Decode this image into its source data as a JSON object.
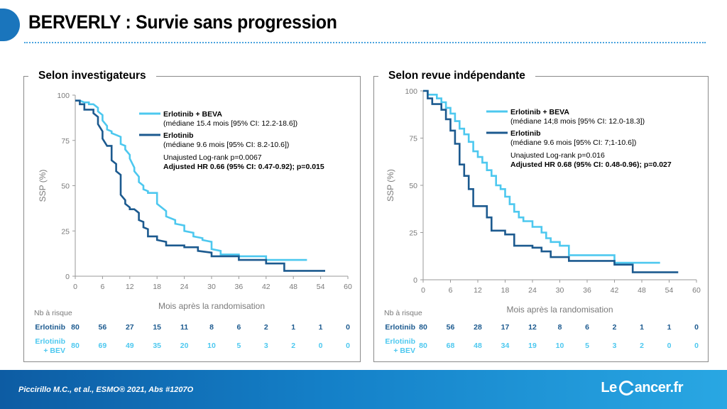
{
  "header": {
    "title": "BERVERLY : Survie sans progression"
  },
  "footer": {
    "citation": "Piccirillo M.C., et al., ESMO® 2021, Abs #1207O",
    "logo_left": "Le",
    "logo_right": "ancer.fr"
  },
  "colors": {
    "erlotinib_bev": "#4dc8ef",
    "erlotinib": "#1c5a8f",
    "accent": "#1a75bc"
  },
  "chart_data": [
    {
      "type": "line",
      "panel_title": "Selon investigateurs",
      "ylabel": "SSP (%)",
      "xlabel": "Mois après la randomisation",
      "xlim": [
        0,
        60
      ],
      "ylim": [
        0,
        100
      ],
      "x_ticks": [
        0,
        6,
        12,
        18,
        24,
        30,
        36,
        42,
        48,
        54,
        60
      ],
      "y_ticks": [
        0,
        25,
        50,
        75,
        100
      ],
      "x_tick_labels": [
        "0",
        "6",
        "12",
        "18",
        "24",
        "30",
        "36",
        "42",
        "48",
        "54",
        "60"
      ],
      "y_tick_labels": [
        "0",
        "25",
        "50",
        "75",
        "100"
      ],
      "legend": {
        "lines": [
          {
            "text": "Erlotinib + BEVA",
            "bold": true,
            "series": 0
          },
          {
            "text": "(médiane 15.4 mois [95% CI: 12.2-18.6])",
            "bold": false
          },
          {
            "text": "Erlotinib",
            "bold": true,
            "series": 1
          },
          {
            "text": "(médiane 9.6 mois [95% CI: 8.2-10.6])",
            "bold": false
          }
        ],
        "stats": [
          {
            "text": "Unajusted Log-rank p=0.0067",
            "bold": false
          },
          {
            "text": "Adjusted HR 0.66 (95% CI: 0.47-0.92); p=0.015",
            "bold": true
          }
        ]
      },
      "series": [
        {
          "name": "Erlotinib + BEVA",
          "color_key": "erlotinib_bev",
          "x": [
            0,
            1,
            2,
            2,
            3,
            3,
            4,
            5,
            5,
            6,
            6,
            7,
            7,
            8,
            8,
            9,
            9,
            10,
            10,
            11,
            11,
            12,
            12,
            13,
            13,
            14,
            14,
            15,
            15,
            16,
            16,
            18,
            18,
            20,
            20,
            22,
            22,
            24,
            24,
            26,
            26,
            28,
            28,
            30,
            30,
            32,
            32,
            36,
            36,
            42,
            42,
            51
          ],
          "y": [
            97,
            97,
            96,
            96,
            96,
            95,
            95,
            93,
            91,
            89,
            86,
            83,
            81,
            80,
            79,
            78,
            78,
            77,
            73,
            72,
            70,
            67,
            65,
            60,
            58,
            55,
            52,
            50,
            48,
            47,
            46,
            46,
            40,
            36,
            33,
            31,
            29,
            28,
            25,
            24,
            22,
            21,
            20,
            19,
            15,
            14,
            12,
            12,
            11,
            11,
            9,
            9
          ]
        },
        {
          "name": "Erlotinib",
          "color_key": "erlotinib",
          "x": [
            0,
            1,
            1,
            2,
            2,
            3,
            3,
            4,
            4,
            5,
            5,
            6,
            6,
            7,
            7,
            8,
            8,
            9,
            9,
            10,
            10,
            11,
            11,
            12,
            12,
            13,
            13,
            14,
            14,
            15,
            15,
            16,
            16,
            18,
            18,
            20,
            20,
            24,
            24,
            27,
            27,
            30,
            30,
            36,
            36,
            42,
            42,
            46,
            46,
            55
          ],
          "y": [
            97,
            97,
            95,
            95,
            92,
            92,
            92,
            92,
            90,
            88,
            84,
            80,
            76,
            72,
            72,
            72,
            64,
            62,
            58,
            56,
            45,
            42,
            40,
            38,
            37,
            37,
            37,
            35,
            31,
            30,
            27,
            26,
            22,
            22,
            20,
            19,
            17,
            17,
            16,
            16,
            14,
            13,
            11,
            11,
            9,
            9,
            7,
            7,
            3,
            3
          ]
        }
      ],
      "risk_table": {
        "title": "Nb à risque",
        "times": [
          0,
          6,
          12,
          18,
          24,
          30,
          36,
          42,
          48,
          54,
          60
        ],
        "rows": [
          {
            "label_lines": [
              "Erlotinib"
            ],
            "color_key": "erlotinib",
            "values": [
              "80",
              "56",
              "27",
              "15",
              "11",
              "8",
              "6",
              "2",
              "1",
              "1",
              "0"
            ]
          },
          {
            "label_lines": [
              "Erlotinib",
              "+ BEV"
            ],
            "color_key": "erlotinib_bev",
            "values": [
              "80",
              "69",
              "49",
              "35",
              "20",
              "10",
              "5",
              "3",
              "2",
              "0",
              "0"
            ]
          }
        ]
      }
    },
    {
      "type": "line",
      "panel_title": "Selon revue indépendante",
      "ylabel": "SSP (%)",
      "xlabel": "Mois après la randomisation",
      "xlim": [
        0,
        60
      ],
      "ylim": [
        0,
        100
      ],
      "x_ticks": [
        0,
        6,
        12,
        18,
        24,
        30,
        36,
        42,
        48,
        54,
        60
      ],
      "y_ticks": [
        0,
        25,
        50,
        75,
        100
      ],
      "x_tick_labels": [
        "0",
        "6",
        "12",
        "18",
        "24",
        "30",
        "36",
        "42",
        "48",
        "54",
        "60"
      ],
      "y_tick_labels": [
        "0",
        "25",
        "50",
        "75",
        "100"
      ],
      "legend": {
        "lines": [
          {
            "text": "Erlotinib + BEVA",
            "bold": true,
            "series": 0
          },
          {
            "text": "(médiane 14;8 mois [95% CI: 12.0-18.3])",
            "bold": false
          },
          {
            "text": "Erlotinib",
            "bold": true,
            "series": 1
          },
          {
            "text": "(médiane 9.6 mois [95% CI: 7;1-10.6])",
            "bold": false
          }
        ],
        "stats": [
          {
            "text": "Unajusted Log-rank p=0.016",
            "bold": false
          },
          {
            "text": "Adjusted HR 0.68 (95% CI: 0.48-0.96); p=0.027",
            "bold": true
          }
        ]
      },
      "series": [
        {
          "name": "Erlotinib + BEVA",
          "color_key": "erlotinib_bev",
          "x": [
            0,
            1,
            1,
            3,
            3,
            4,
            4,
            5,
            5,
            6,
            6,
            7,
            7,
            8,
            8,
            9,
            9,
            10,
            10,
            11,
            11,
            12,
            12,
            13,
            13,
            14,
            14,
            15,
            15,
            16,
            16,
            17,
            17,
            18,
            18,
            19,
            19,
            20,
            20,
            21,
            21,
            22,
            22,
            24,
            24,
            26,
            26,
            27,
            27,
            28,
            28,
            30,
            30,
            32,
            32,
            42,
            42,
            52
          ],
          "y": [
            100,
            100,
            98,
            98,
            96,
            96,
            94,
            94,
            91,
            91,
            88,
            88,
            84,
            84,
            80,
            80,
            77,
            77,
            73,
            73,
            68,
            68,
            65,
            65,
            62,
            62,
            58,
            58,
            55,
            55,
            50,
            50,
            48,
            48,
            44,
            44,
            40,
            40,
            36,
            36,
            33,
            33,
            31,
            31,
            28,
            28,
            25,
            25,
            22,
            22,
            20,
            20,
            18,
            18,
            13,
            13,
            9,
            9
          ]
        },
        {
          "name": "Erlotinib",
          "color_key": "erlotinib",
          "x": [
            0,
            1,
            1,
            2,
            2,
            4,
            4,
            5,
            5,
            6,
            6,
            7,
            7,
            8,
            8,
            9,
            9,
            10,
            10,
            11,
            11,
            14,
            14,
            15,
            15,
            18,
            18,
            20,
            20,
            24,
            24,
            26,
            26,
            28,
            28,
            32,
            32,
            42,
            42,
            46,
            46,
            56
          ],
          "y": [
            100,
            100,
            96,
            96,
            93,
            93,
            90,
            90,
            85,
            85,
            79,
            79,
            72,
            72,
            61,
            61,
            55,
            55,
            48,
            48,
            39,
            39,
            33,
            33,
            26,
            26,
            24,
            24,
            18,
            18,
            17,
            17,
            15,
            15,
            12,
            12,
            10,
            10,
            8,
            8,
            4,
            4
          ]
        }
      ],
      "risk_table": {
        "title": "Nb à risque",
        "times": [
          0,
          6,
          12,
          18,
          24,
          30,
          36,
          42,
          48,
          54,
          60
        ],
        "rows": [
          {
            "label_lines": [
              "Erlotinib"
            ],
            "color_key": "erlotinib",
            "values": [
              "80",
              "56",
              "28",
              "17",
              "12",
              "8",
              "6",
              "2",
              "1",
              "1",
              "0"
            ]
          },
          {
            "label_lines": [
              "Erlotinib",
              "+ BEV"
            ],
            "color_key": "erlotinib_bev",
            "values": [
              "80",
              "68",
              "48",
              "34",
              "19",
              "10",
              "5",
              "3",
              "2",
              "0",
              "0"
            ]
          }
        ]
      }
    }
  ]
}
